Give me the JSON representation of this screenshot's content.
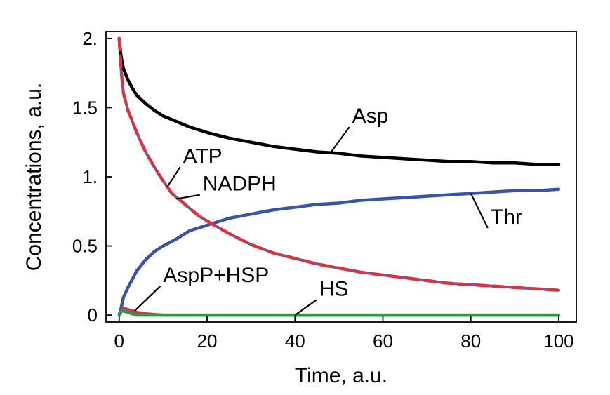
{
  "chart_data": {
    "type": "line",
    "title": "",
    "xlabel": "Time, a.u.",
    "ylabel": "Concentrations, a.u.",
    "xlim": [
      -3,
      104
    ],
    "ylim": [
      -0.05,
      2.05
    ],
    "x_ticks": [
      {
        "value": 0,
        "label": "0"
      },
      {
        "value": 20,
        "label": "20"
      },
      {
        "value": 40,
        "label": "40"
      },
      {
        "value": 60,
        "label": "60"
      },
      {
        "value": 80,
        "label": "80"
      },
      {
        "value": 100,
        "label": "100"
      }
    ],
    "y_ticks": [
      {
        "value": 0,
        "label": "0"
      },
      {
        "value": 0.5,
        "label": "0.5"
      },
      {
        "value": 1,
        "label": "1."
      },
      {
        "value": 1.5,
        "label": "1.5"
      },
      {
        "value": 2,
        "label": "2."
      }
    ],
    "grid": false,
    "series": [
      {
        "name": "Asp",
        "color": "#000000",
        "style": "solid",
        "x": [
          0,
          0.3,
          0.6,
          1,
          2,
          3,
          4,
          6,
          8,
          10,
          13,
          16,
          20,
          25,
          30,
          35,
          40,
          45,
          50,
          55,
          60,
          65,
          70,
          75,
          80,
          85,
          90,
          95,
          100
        ],
        "y": [
          2.0,
          1.9,
          1.84,
          1.78,
          1.7,
          1.64,
          1.59,
          1.53,
          1.48,
          1.44,
          1.4,
          1.36,
          1.32,
          1.28,
          1.25,
          1.22,
          1.2,
          1.18,
          1.17,
          1.15,
          1.14,
          1.13,
          1.12,
          1.11,
          1.11,
          1.1,
          1.1,
          1.09,
          1.09
        ]
      },
      {
        "name": "ATP",
        "color": "#e03040",
        "style": "dashed",
        "x": [
          0,
          0.5,
          1,
          2,
          3,
          4,
          6,
          8,
          10,
          12,
          15,
          18,
          20,
          25,
          30,
          35,
          40,
          45,
          50,
          55,
          60,
          65,
          70,
          75,
          80,
          85,
          90,
          95,
          100
        ],
        "y": [
          2.0,
          1.75,
          1.6,
          1.48,
          1.4,
          1.32,
          1.18,
          1.07,
          0.97,
          0.88,
          0.8,
          0.72,
          0.68,
          0.59,
          0.51,
          0.45,
          0.41,
          0.37,
          0.34,
          0.31,
          0.29,
          0.27,
          0.25,
          0.23,
          0.22,
          0.21,
          0.2,
          0.19,
          0.18
        ]
      },
      {
        "name": "NADPH",
        "color": "#6a5aa0",
        "style": "solid",
        "x": [
          0,
          0.5,
          1,
          2,
          3,
          4,
          6,
          8,
          10,
          12,
          15,
          18,
          20,
          25,
          30,
          35,
          40,
          45,
          50,
          55,
          60,
          65,
          70,
          75,
          80,
          85,
          90,
          95,
          100
        ],
        "y": [
          2.0,
          1.75,
          1.6,
          1.48,
          1.4,
          1.32,
          1.18,
          1.07,
          0.97,
          0.88,
          0.8,
          0.72,
          0.68,
          0.59,
          0.51,
          0.45,
          0.41,
          0.37,
          0.34,
          0.31,
          0.29,
          0.27,
          0.25,
          0.23,
          0.22,
          0.21,
          0.2,
          0.19,
          0.18
        ]
      },
      {
        "name": "Thr",
        "color": "#3a52a8",
        "style": "solid",
        "x": [
          0,
          0.5,
          1,
          2,
          3,
          4,
          6,
          8,
          10,
          13,
          16,
          20,
          25,
          30,
          35,
          40,
          45,
          50,
          55,
          60,
          65,
          70,
          75,
          80,
          85,
          90,
          95,
          100
        ],
        "y": [
          0.0,
          0.06,
          0.13,
          0.2,
          0.26,
          0.32,
          0.4,
          0.46,
          0.5,
          0.55,
          0.61,
          0.65,
          0.7,
          0.73,
          0.76,
          0.78,
          0.8,
          0.81,
          0.83,
          0.84,
          0.85,
          0.86,
          0.87,
          0.88,
          0.89,
          0.9,
          0.9,
          0.91
        ]
      },
      {
        "name": "AspP+HSP",
        "color": "#e03040",
        "style": "solid",
        "x": [
          0,
          0.5,
          1,
          2,
          3,
          4,
          6,
          8,
          10,
          100
        ],
        "y": [
          0.0,
          0.03,
          0.05,
          0.04,
          0.03,
          0.02,
          0.01,
          0.005,
          0.0,
          0.0
        ]
      },
      {
        "name": "HS",
        "color": "#2a9a4a",
        "style": "solid",
        "x": [
          0,
          0.5,
          1,
          2,
          3,
          4,
          100
        ],
        "y": [
          0.0,
          0.03,
          0.03,
          0.02,
          0.01,
          0.0,
          0.0
        ]
      }
    ],
    "annotations": [
      {
        "text": "Asp",
        "series": "Asp",
        "x": 48,
        "y": 1.17,
        "label_x": 53,
        "label_y": 1.39
      },
      {
        "text": "ATP",
        "series": "ATP",
        "x": 11,
        "y": 0.93,
        "label_x": 14.5,
        "label_y": 1.1
      },
      {
        "text": "NADPH",
        "series": "NADPH",
        "x": 13,
        "y": 0.84,
        "label_x": 19,
        "label_y": 0.9
      },
      {
        "text": "Thr",
        "series": "Thr",
        "x": 80,
        "y": 0.88,
        "label_x": 84.5,
        "label_y": 0.66
      },
      {
        "text": "AspP+HSP",
        "series": "AspP+HSP",
        "x": 3.5,
        "y": 0.03,
        "label_x": 10,
        "label_y": 0.24
      },
      {
        "text": "HS",
        "series": "HS",
        "x": 40,
        "y": 0.0,
        "label_x": 45.5,
        "label_y": 0.14
      }
    ]
  }
}
